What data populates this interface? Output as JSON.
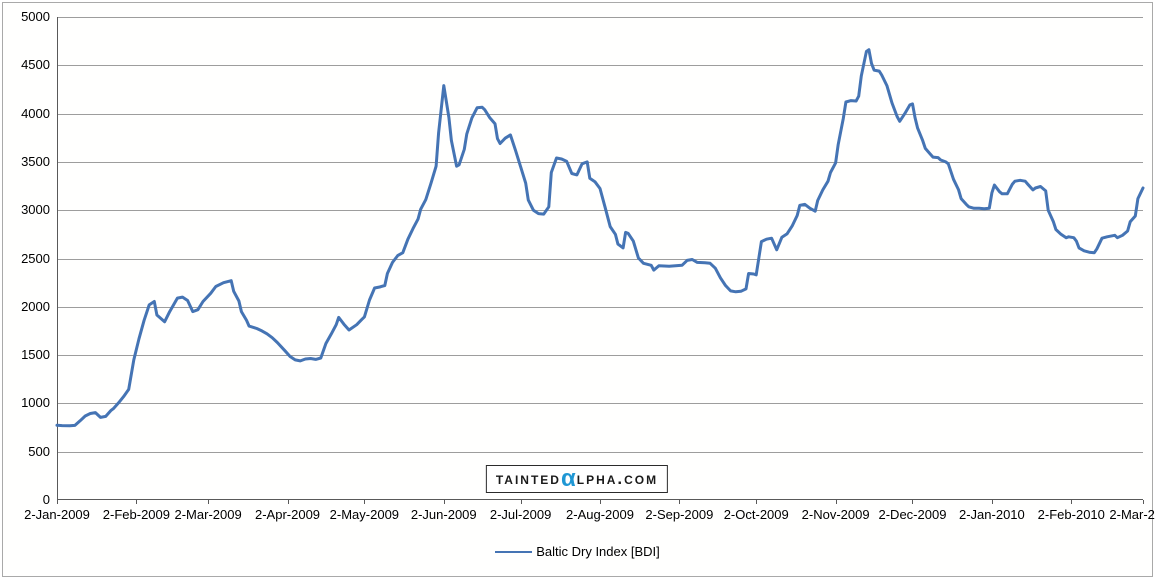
{
  "legend": {
    "label": "Baltic Dry Index [BDI]"
  },
  "watermark": {
    "part1": "Tainted",
    "alpha": "α",
    "part2": "lpha.com",
    "display": "TAINTEDαLPHA.COM"
  },
  "colors": {
    "line": "#4574b4",
    "grid": "#9d9d9d",
    "axis": "#595959",
    "text": "#000000",
    "watermark_alpha": "#1f97d4",
    "frame_border": "#a9a9a9",
    "background": "#ffffff"
  },
  "chart_data": {
    "type": "line",
    "title": "",
    "xlabel": "",
    "ylabel": "",
    "grid": true,
    "legend_position": "bottom-center",
    "y_axis": {
      "min": 0,
      "max": 5000,
      "step": 500,
      "tick_labels": [
        "0",
        "500",
        "1000",
        "1500",
        "2000",
        "2500",
        "3000",
        "3500",
        "4000",
        "4500",
        "5000"
      ]
    },
    "x_axis": {
      "total_days": 424,
      "tick_days": [
        0,
        31,
        59,
        90,
        120,
        151,
        181,
        212,
        243,
        273,
        304,
        334,
        365,
        396,
        424
      ],
      "tick_labels": [
        "2-Jan-2009",
        "2-Feb-2009",
        "2-Mar-2009",
        "2-Apr-2009",
        "2-May-2009",
        "2-Jun-2009",
        "2-Jul-2009",
        "2-Aug-2009",
        "2-Sep-2009",
        "2-Oct-2009",
        "2-Nov-2009",
        "2-Dec-2009",
        "2-Jan-2010",
        "2-Feb-2010",
        "2-Mar-2010"
      ]
    },
    "series": [
      {
        "name": "Baltic Dry Index [BDI]",
        "color": "#4574b4",
        "points": [
          [
            0,
            773
          ],
          [
            2,
            770
          ],
          [
            5,
            768
          ],
          [
            7,
            772
          ],
          [
            9,
            820
          ],
          [
            11,
            870
          ],
          [
            13,
            895
          ],
          [
            15,
            905
          ],
          [
            17,
            855
          ],
          [
            19,
            865
          ],
          [
            21,
            925
          ],
          [
            22,
            945
          ],
          [
            24,
            1005
          ],
          [
            26,
            1070
          ],
          [
            28,
            1145
          ],
          [
            30,
            1450
          ],
          [
            32,
            1670
          ],
          [
            34,
            1860
          ],
          [
            36,
            2020
          ],
          [
            38,
            2055
          ],
          [
            39,
            1915
          ],
          [
            42,
            1845
          ],
          [
            44,
            1950
          ],
          [
            47,
            2090
          ],
          [
            49,
            2100
          ],
          [
            51,
            2065
          ],
          [
            53,
            1950
          ],
          [
            55,
            1970
          ],
          [
            57,
            2055
          ],
          [
            60,
            2140
          ],
          [
            62,
            2210
          ],
          [
            65,
            2250
          ],
          [
            68,
            2270
          ],
          [
            69,
            2160
          ],
          [
            71,
            2060
          ],
          [
            72,
            1950
          ],
          [
            74,
            1860
          ],
          [
            75,
            1800
          ],
          [
            78,
            1775
          ],
          [
            80,
            1750
          ],
          [
            82,
            1720
          ],
          [
            84,
            1680
          ],
          [
            86,
            1630
          ],
          [
            89,
            1545
          ],
          [
            91,
            1485
          ],
          [
            93,
            1450
          ],
          [
            95,
            1440
          ],
          [
            97,
            1460
          ],
          [
            99,
            1465
          ],
          [
            101,
            1455
          ],
          [
            103,
            1470
          ],
          [
            105,
            1620
          ],
          [
            107,
            1715
          ],
          [
            109,
            1815
          ],
          [
            110,
            1890
          ],
          [
            112,
            1820
          ],
          [
            114,
            1760
          ],
          [
            117,
            1815
          ],
          [
            119,
            1870
          ],
          [
            120,
            1895
          ],
          [
            122,
            2070
          ],
          [
            124,
            2195
          ],
          [
            126,
            2205
          ],
          [
            128,
            2220
          ],
          [
            129,
            2345
          ],
          [
            131,
            2460
          ],
          [
            133,
            2530
          ],
          [
            135,
            2560
          ],
          [
            137,
            2700
          ],
          [
            139,
            2810
          ],
          [
            141,
            2910
          ],
          [
            142,
            3010
          ],
          [
            144,
            3110
          ],
          [
            146,
            3280
          ],
          [
            148,
            3455
          ],
          [
            149,
            3800
          ],
          [
            151,
            4290
          ],
          [
            153,
            3960
          ],
          [
            154,
            3720
          ],
          [
            156,
            3455
          ],
          [
            157,
            3470
          ],
          [
            159,
            3630
          ],
          [
            160,
            3790
          ],
          [
            162,
            3955
          ],
          [
            164,
            4060
          ],
          [
            166,
            4065
          ],
          [
            167,
            4040
          ],
          [
            169,
            3955
          ],
          [
            171,
            3895
          ],
          [
            172,
            3740
          ],
          [
            173,
            3690
          ],
          [
            175,
            3745
          ],
          [
            177,
            3780
          ],
          [
            179,
            3620
          ],
          [
            181,
            3450
          ],
          [
            183,
            3280
          ],
          [
            184,
            3105
          ],
          [
            186,
            3000
          ],
          [
            188,
            2965
          ],
          [
            190,
            2960
          ],
          [
            192,
            3035
          ],
          [
            193,
            3390
          ],
          [
            195,
            3540
          ],
          [
            197,
            3530
          ],
          [
            199,
            3505
          ],
          [
            201,
            3380
          ],
          [
            203,
            3365
          ],
          [
            205,
            3480
          ],
          [
            207,
            3500
          ],
          [
            208,
            3330
          ],
          [
            210,
            3295
          ],
          [
            212,
            3225
          ],
          [
            214,
            3030
          ],
          [
            216,
            2830
          ],
          [
            218,
            2750
          ],
          [
            219,
            2650
          ],
          [
            221,
            2610
          ],
          [
            222,
            2770
          ],
          [
            223,
            2760
          ],
          [
            225,
            2680
          ],
          [
            227,
            2505
          ],
          [
            229,
            2450
          ],
          [
            232,
            2430
          ],
          [
            233,
            2380
          ],
          [
            235,
            2425
          ],
          [
            239,
            2420
          ],
          [
            244,
            2430
          ],
          [
            246,
            2480
          ],
          [
            248,
            2490
          ],
          [
            250,
            2460
          ],
          [
            253,
            2455
          ],
          [
            255,
            2450
          ],
          [
            257,
            2400
          ],
          [
            259,
            2300
          ],
          [
            261,
            2220
          ],
          [
            263,
            2165
          ],
          [
            265,
            2155
          ],
          [
            267,
            2160
          ],
          [
            269,
            2185
          ],
          [
            270,
            2345
          ],
          [
            272,
            2340
          ],
          [
            273,
            2330
          ],
          [
            275,
            2675
          ],
          [
            277,
            2700
          ],
          [
            279,
            2710
          ],
          [
            281,
            2590
          ],
          [
            283,
            2720
          ],
          [
            285,
            2755
          ],
          [
            287,
            2835
          ],
          [
            289,
            2945
          ],
          [
            290,
            3050
          ],
          [
            292,
            3060
          ],
          [
            294,
            3020
          ],
          [
            296,
            2990
          ],
          [
            297,
            3100
          ],
          [
            299,
            3210
          ],
          [
            301,
            3300
          ],
          [
            302,
            3390
          ],
          [
            304,
            3490
          ],
          [
            305,
            3680
          ],
          [
            307,
            3950
          ],
          [
            308,
            4120
          ],
          [
            310,
            4135
          ],
          [
            312,
            4130
          ],
          [
            313,
            4180
          ],
          [
            314,
            4390
          ],
          [
            316,
            4643
          ],
          [
            317,
            4661
          ],
          [
            318,
            4520
          ],
          [
            319,
            4450
          ],
          [
            321,
            4440
          ],
          [
            322,
            4400
          ],
          [
            324,
            4290
          ],
          [
            326,
            4110
          ],
          [
            328,
            3970
          ],
          [
            329,
            3920
          ],
          [
            331,
            4000
          ],
          [
            333,
            4090
          ],
          [
            334,
            4100
          ],
          [
            335,
            3960
          ],
          [
            336,
            3850
          ],
          [
            338,
            3720
          ],
          [
            339,
            3640
          ],
          [
            341,
            3580
          ],
          [
            342,
            3550
          ],
          [
            344,
            3545
          ],
          [
            345,
            3520
          ],
          [
            347,
            3500
          ],
          [
            348,
            3480
          ],
          [
            350,
            3320
          ],
          [
            352,
            3210
          ],
          [
            353,
            3120
          ],
          [
            355,
            3060
          ],
          [
            356,
            3035
          ],
          [
            358,
            3020
          ],
          [
            360,
            3020
          ],
          [
            362,
            3015
          ],
          [
            364,
            3020
          ],
          [
            365,
            3180
          ],
          [
            366,
            3260
          ],
          [
            368,
            3190
          ],
          [
            369,
            3170
          ],
          [
            371,
            3170
          ],
          [
            373,
            3270
          ],
          [
            374,
            3300
          ],
          [
            376,
            3310
          ],
          [
            378,
            3300
          ],
          [
            379,
            3270
          ],
          [
            381,
            3210
          ],
          [
            382,
            3230
          ],
          [
            384,
            3245
          ],
          [
            386,
            3200
          ],
          [
            387,
            3000
          ],
          [
            389,
            2880
          ],
          [
            390,
            2800
          ],
          [
            392,
            2750
          ],
          [
            394,
            2715
          ],
          [
            395,
            2725
          ],
          [
            397,
            2715
          ],
          [
            398,
            2680
          ],
          [
            399,
            2610
          ],
          [
            401,
            2580
          ],
          [
            403,
            2565
          ],
          [
            405,
            2560
          ],
          [
            406,
            2600
          ],
          [
            408,
            2710
          ],
          [
            410,
            2725
          ],
          [
            411,
            2730
          ],
          [
            413,
            2740
          ],
          [
            414,
            2715
          ],
          [
            416,
            2740
          ],
          [
            418,
            2785
          ],
          [
            419,
            2880
          ],
          [
            421,
            2940
          ],
          [
            422,
            3120
          ],
          [
            424,
            3230
          ]
        ]
      }
    ]
  }
}
